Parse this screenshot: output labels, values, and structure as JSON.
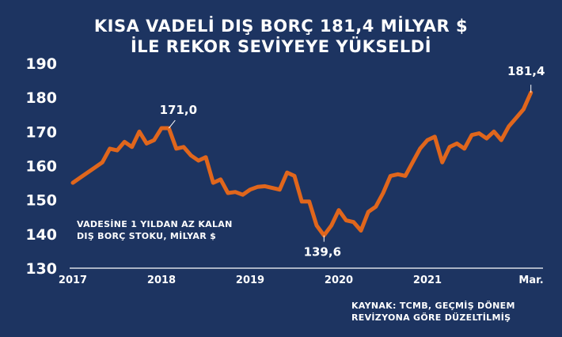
{
  "chart_data": {
    "type": "line",
    "title": [
      "KISA VADELİ DIŞ BORÇ 181,4 MİLYAR $",
      "İLE REKOR SEVİYEYE YÜKSELDİ"
    ],
    "note": [
      "VADESİNE 1 YILDAN AZ KALAN",
      "DIŞ BORÇ STOKU, MİLYAR $"
    ],
    "source": [
      "KAYNAK: TCMB, GEÇMİŞ DÖNEM",
      "REVİZYONA GÖRE DÜZELTİLMİŞ"
    ],
    "x_tick_labels": [
      "2017",
      "2018",
      "2019",
      "2020",
      "2021",
      "Mar."
    ],
    "x_tick_positions": [
      2017,
      2018,
      2019,
      2020,
      2021,
      2022.17
    ],
    "y_ticks": [
      190,
      180,
      170,
      160,
      150,
      140,
      130
    ],
    "ylim": [
      130,
      190
    ],
    "xlim": [
      2017,
      2022.25
    ],
    "grid": false,
    "series": [
      {
        "color": "#e0661c",
        "x": [
          2017.0,
          2017.083,
          2017.167,
          2017.25,
          2017.333,
          2017.417,
          2017.5,
          2017.583,
          2017.667,
          2017.75,
          2017.833,
          2017.917,
          2018.0,
          2018.083,
          2018.167,
          2018.25,
          2018.333,
          2018.417,
          2018.5,
          2018.583,
          2018.667,
          2018.75,
          2018.833,
          2018.917,
          2019.0,
          2019.083,
          2019.167,
          2019.25,
          2019.333,
          2019.417,
          2019.5,
          2019.583,
          2019.667,
          2019.75,
          2019.833,
          2019.917,
          2020.0,
          2020.083,
          2020.167,
          2020.25,
          2020.333,
          2020.417,
          2020.5,
          2020.583,
          2020.667,
          2020.75,
          2020.833,
          2020.917,
          2021.0,
          2021.083,
          2021.167,
          2021.25,
          2021.333,
          2021.417,
          2021.5,
          2021.583,
          2021.667,
          2021.75,
          2021.833,
          2021.917,
          2022.0,
          2022.083,
          2022.167
        ],
        "values": [
          155.0,
          156.5,
          158.0,
          159.5,
          161.0,
          165.0,
          164.5,
          167.0,
          165.5,
          170.0,
          166.5,
          167.5,
          171.0,
          171.0,
          165.0,
          165.5,
          163.0,
          161.5,
          162.5,
          155.0,
          156.0,
          152.0,
          152.3,
          151.5,
          153.0,
          153.8,
          154.0,
          153.5,
          153.0,
          158.0,
          157.0,
          149.5,
          149.5,
          142.5,
          139.6,
          142.5,
          147.0,
          144.0,
          143.5,
          141.0,
          146.5,
          148.0,
          152.0,
          157.0,
          157.5,
          157.0,
          161.0,
          165.0,
          167.5,
          168.5,
          161.0,
          165.5,
          166.5,
          165.0,
          169.0,
          169.5,
          168.0,
          170.0,
          167.5,
          171.5,
          174.0,
          176.5,
          181.4
        ]
      }
    ],
    "annotations": [
      {
        "text": "171,0",
        "x": 2018.083,
        "y": 171.0
      },
      {
        "text": "139,6",
        "x": 2019.833,
        "y": 139.6
      },
      {
        "text": "181,4",
        "x": 2022.167,
        "y": 181.4
      }
    ]
  }
}
